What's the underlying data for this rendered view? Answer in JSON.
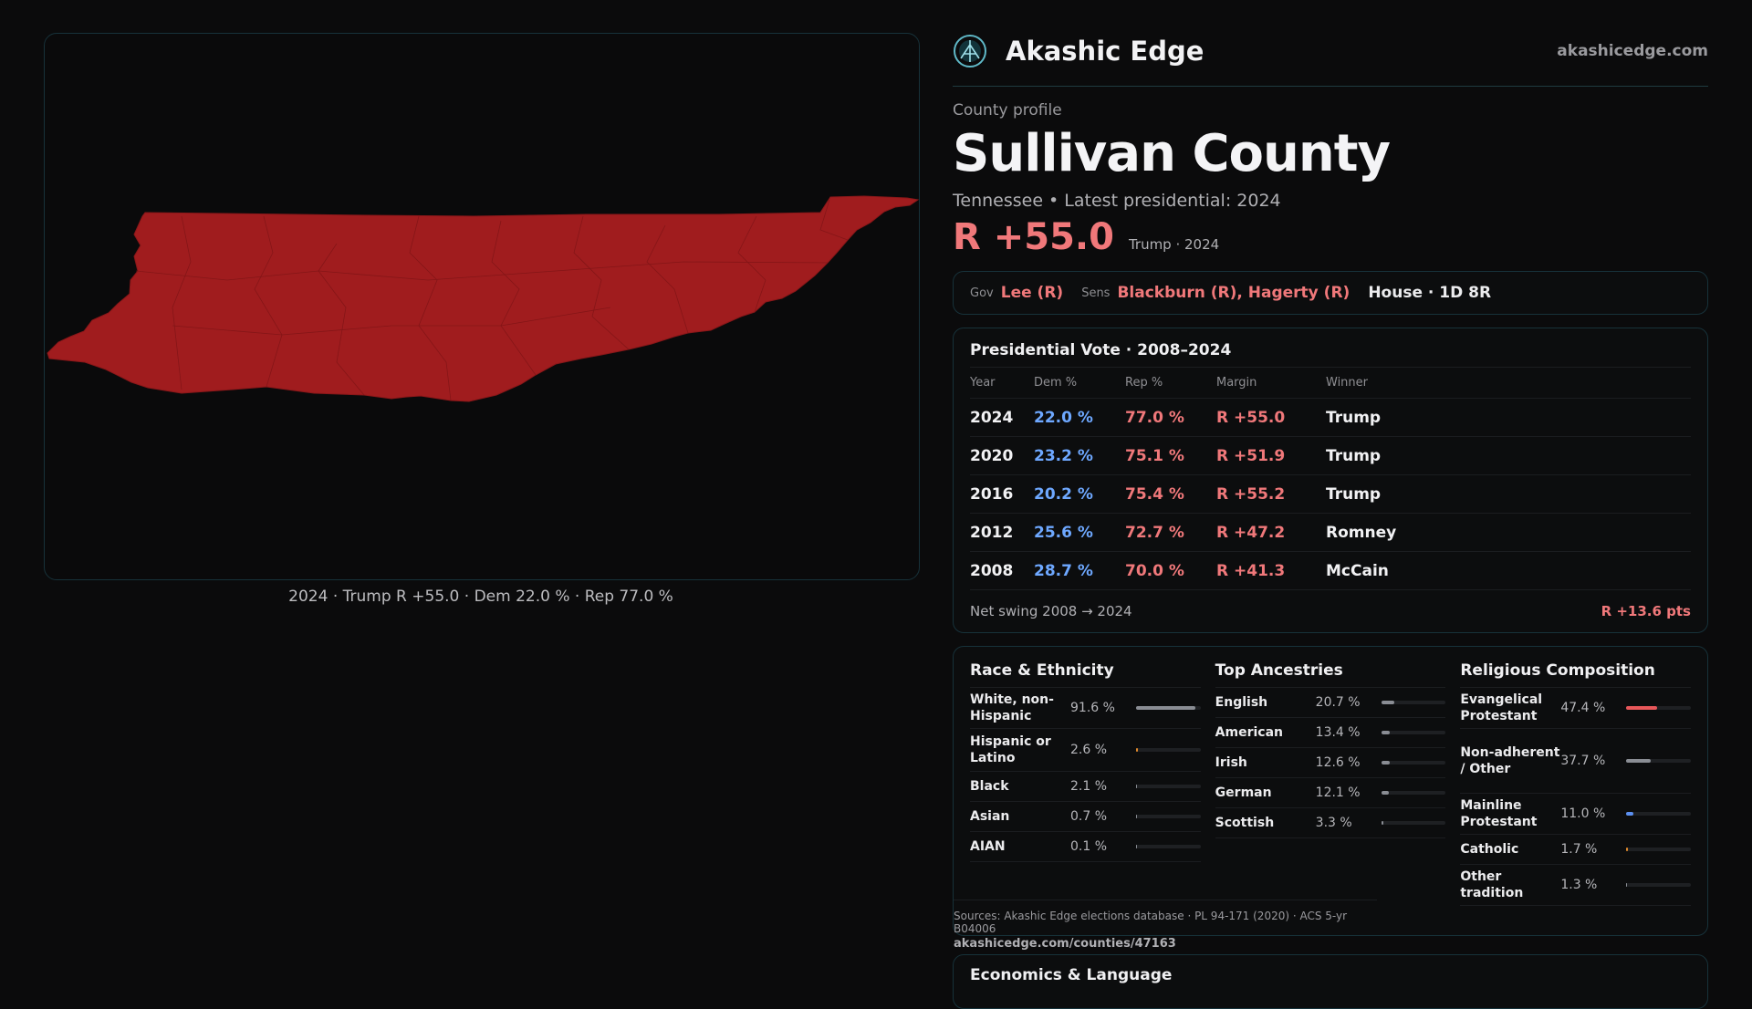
{
  "brand": {
    "name": "Akashic Edge",
    "url": "akashicedge.com",
    "logo": "akashic-edge-logo"
  },
  "map": {
    "fill_color": "#a01c1e",
    "caption": "2024 · Trump R +55.0 · Dem 22.0 % · Rep 77.0 %"
  },
  "profile": {
    "eyebrow": "County profile",
    "title": "Sullivan County",
    "subline": "Tennessee  • Latest presidential: 2024",
    "margin": "R +55.0",
    "margin_who": "Trump · 2024"
  },
  "officials": {
    "gov_key": "Gov",
    "gov": "Lee (R)",
    "sens_key": "Sens",
    "sens": "Blackburn (R), Hagerty (R)",
    "house": "House · 1D 8R"
  },
  "presidential": {
    "title": "Presidential Vote · 2008–2024",
    "headers": {
      "year": "Year",
      "dem": "Dem %",
      "rep": "Rep %",
      "margin": "Margin",
      "winner": "Winner"
    },
    "rows": [
      {
        "year": "2024",
        "dem": "22.0 %",
        "rep": "77.0 %",
        "margin": "R +55.0",
        "winner": "Trump"
      },
      {
        "year": "2020",
        "dem": "23.2 %",
        "rep": "75.1 %",
        "margin": "R +51.9",
        "winner": "Trump"
      },
      {
        "year": "2016",
        "dem": "20.2 %",
        "rep": "75.4 %",
        "margin": "R +55.2",
        "winner": "Trump"
      },
      {
        "year": "2012",
        "dem": "25.6 %",
        "rep": "72.7 %",
        "margin": "R +47.2",
        "winner": "Romney"
      },
      {
        "year": "2008",
        "dem": "28.7 %",
        "rep": "70.0 %",
        "margin": "R +41.3",
        "winner": "McCain"
      }
    ],
    "swing_label": "Net swing 2008 → 2024",
    "swing_value": "R +13.6 pts"
  },
  "race": {
    "title": "Race & Ethnicity",
    "rows": [
      {
        "label": "White, non-Hispanic",
        "value": "91.6 %",
        "share": 0.916,
        "color": "#8a8d94"
      },
      {
        "label": "Hispanic or Latino",
        "value": "2.6 %",
        "share": 0.026,
        "color": "#e0892b"
      },
      {
        "label": "Black",
        "value": "2.1 %",
        "share": 0.021,
        "color": "#8a8d94"
      },
      {
        "label": "Asian",
        "value": "0.7 %",
        "share": 0.007,
        "color": "#8a8d94"
      },
      {
        "label": "AIAN",
        "value": "0.1 %",
        "share": 0.001,
        "color": "#8a8d94"
      }
    ]
  },
  "ancestry": {
    "title": "Top Ancestries",
    "rows": [
      {
        "label": "English",
        "value": "20.7 %",
        "share": 0.207,
        "color": "#8a8d94"
      },
      {
        "label": "American",
        "value": "13.4 %",
        "share": 0.134,
        "color": "#8a8d94"
      },
      {
        "label": "Irish",
        "value": "12.6 %",
        "share": 0.126,
        "color": "#8a8d94"
      },
      {
        "label": "German",
        "value": "12.1 %",
        "share": 0.121,
        "color": "#8a8d94"
      },
      {
        "label": "Scottish",
        "value": "3.3 %",
        "share": 0.033,
        "color": "#8a8d94"
      }
    ]
  },
  "religion": {
    "title": "Religious Composition",
    "rows": [
      {
        "label": "Evangelical Protestant",
        "value": "47.4 %",
        "share": 0.474,
        "color": "#e8575a"
      },
      {
        "label": "Non-adherent / Other",
        "value": "37.7 %",
        "share": 0.377,
        "color": "#8a8d94"
      },
      {
        "label": "Mainline Protestant",
        "value": "11.0 %",
        "share": 0.11,
        "color": "#5b8ff0"
      },
      {
        "label": "Catholic",
        "value": "1.7 %",
        "share": 0.017,
        "color": "#e0892b"
      },
      {
        "label": "Other tradition",
        "value": "1.3 %",
        "share": 0.013,
        "color": "#8a8d94"
      }
    ]
  },
  "sources": {
    "text": "Sources: Akashic Edge elections database · PL 94-171 (2020) · ACS 5-yr B04006",
    "url": "akashicedge.com/counties/47163"
  },
  "econ": {
    "title": "Economics & Language"
  }
}
